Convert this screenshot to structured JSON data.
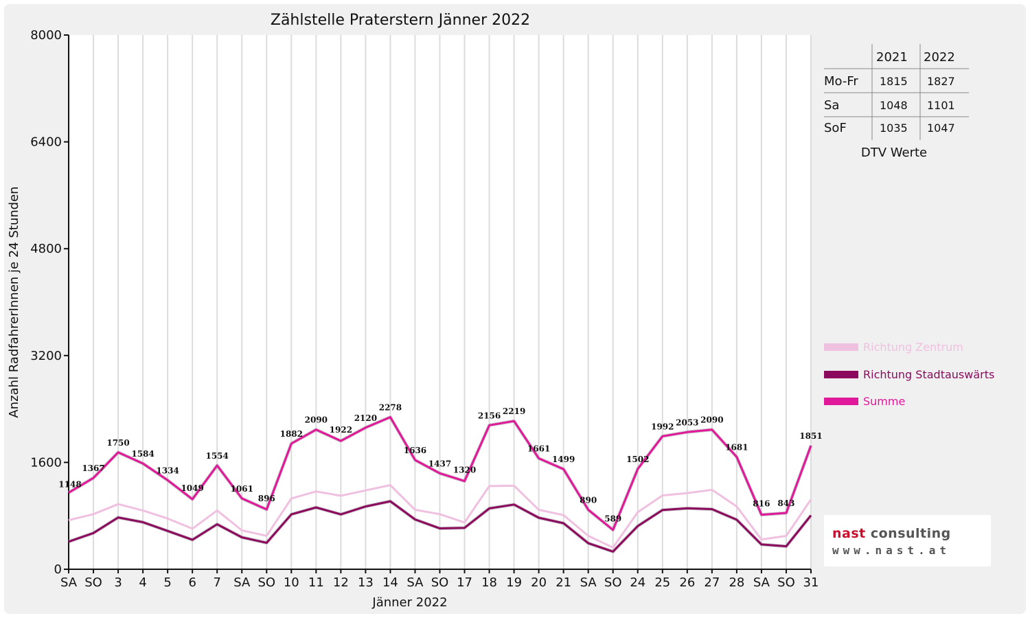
{
  "chart_data": {
    "type": "line",
    "title": "Zählstelle Praterstern Jänner 2022",
    "xlabel": "Jänner 2022",
    "ylabel": "Anzahl RadfahrerInnen je 24 Stunden",
    "ylim": [
      0,
      8000
    ],
    "yticks": [
      "0",
      "1600",
      "3200",
      "4800",
      "6400",
      "8000"
    ],
    "grid": true,
    "categories": [
      "SA",
      "SO",
      "3",
      "4",
      "5",
      "6",
      "7",
      "SA",
      "SO",
      "10",
      "11",
      "12",
      "13",
      "14",
      "SA",
      "SO",
      "17",
      "18",
      "19",
      "20",
      "21",
      "SA",
      "SO",
      "24",
      "25",
      "26",
      "27",
      "28",
      "SA",
      "SO",
      "31"
    ],
    "red_categories": [
      1,
      5,
      8,
      15,
      22,
      29
    ],
    "series": [
      {
        "name": "Richtung Zentrum",
        "color": "#f0c0e0",
        "values": [
          735,
          825,
          975,
          880,
          760,
          608,
          880,
          583,
          500,
          1060,
          1165,
          1100,
          1180,
          1260,
          890,
          825,
          700,
          1245,
          1250,
          890,
          810,
          500,
          325,
          855,
          1105,
          1140,
          1190,
          940,
          445,
          500,
          1045
        ]
      },
      {
        "name": "Richtung Stadtauswärts",
        "color": "#8c0a5e",
        "values": [
          413,
          542,
          775,
          704,
          574,
          441,
          674,
          478,
          396,
          822,
          925,
          822,
          940,
          1018,
          746,
          612,
          620,
          911,
          969,
          771,
          689,
          390,
          264,
          647,
          887,
          913,
          900,
          741,
          371,
          343,
          806
        ]
      },
      {
        "name": "Summe",
        "color": "#e0189a",
        "values": [
          1148,
          1367,
          1750,
          1584,
          1334,
          1049,
          1554,
          1061,
          896,
          1882,
          2090,
          1922,
          2120,
          2278,
          1636,
          1437,
          1320,
          2156,
          2219,
          1661,
          1499,
          890,
          589,
          1502,
          1992,
          2053,
          2090,
          1681,
          816,
          843,
          1851
        ]
      }
    ],
    "data_labels": [
      "1148",
      "1367",
      "1750",
      "1584",
      "1334",
      "1049",
      "1554",
      "1061",
      "896",
      "1882",
      "2090",
      "1922",
      "2120",
      "2278",
      "1636",
      "1437",
      "1320",
      "2156",
      "2219",
      "1661",
      "1499",
      "890",
      "589",
      "1502",
      "1992",
      "2053",
      "2090",
      "1681",
      "816",
      "843",
      "1851"
    ],
    "legend_position": "right"
  },
  "dtv_table": {
    "caption": "DTV Werte",
    "columns": [
      "2021",
      "2022"
    ],
    "rows": [
      {
        "label": "Mo-Fr",
        "v2021": "1815",
        "v2022": "1827"
      },
      {
        "label": "Sa",
        "v2021": "1048",
        "v2022": "1101"
      },
      {
        "label": "SoF",
        "v2021": "1035",
        "v2022": "1047"
      }
    ]
  },
  "logo": {
    "line1_a": "nast",
    "line1_b": " consulting",
    "line2": "www.nast.at"
  },
  "colors": {
    "weekend_red": "#e00000",
    "summe": "#e0189a",
    "stadtauswaerts": "#8c0a5e",
    "zentrum": "#f0c0e0"
  }
}
